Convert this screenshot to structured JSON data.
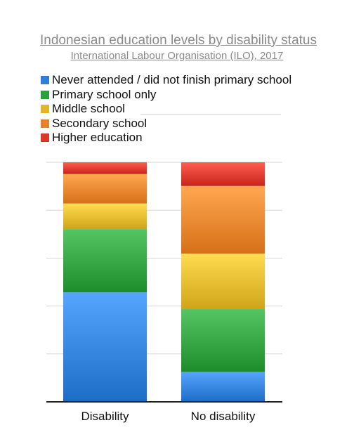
{
  "chart_data": {
    "type": "bar",
    "stacked": true,
    "title": "Indonesian education levels by disability status",
    "subtitle": "International Labour Organisation (ILO), 2017",
    "categories": [
      "Disability",
      "No disability"
    ],
    "series": [
      {
        "name": "Never attended / did not finish primary school",
        "values": [
          45.7,
          12.5
        ],
        "color": "#2f7fd8"
      },
      {
        "name": "Primary school only",
        "values": [
          26.4,
          26.2
        ],
        "color": "#2f9e3c"
      },
      {
        "name": "Middle school",
        "values": [
          10.7,
          23.2
        ],
        "color": "#e2b62a"
      },
      {
        "name": "Secondary school",
        "values": [
          12.3,
          28.2
        ],
        "color": "#e8822a"
      },
      {
        "name": "Higher education",
        "values": [
          4.9,
          9.9
        ],
        "color": "#d9372b"
      }
    ],
    "ylim": [
      0,
      100
    ],
    "grid": true,
    "legend_position": "top-left"
  }
}
